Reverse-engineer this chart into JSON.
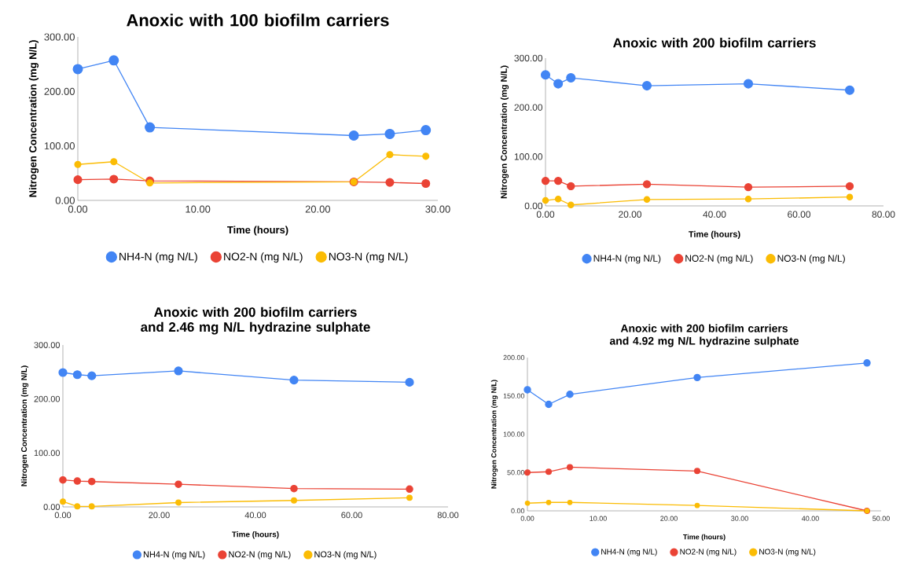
{
  "chart_data": [
    {
      "type": "line",
      "title": "Anoxic with 100 biofilm carriers",
      "xlabel": "Time (hours)",
      "ylabel": "Nitrogen Concentration (mg N/L)",
      "x": [
        0,
        3,
        6,
        23,
        26,
        29
      ],
      "series": [
        {
          "name": "NH4-N (mg N/L)",
          "color": "#4285f4",
          "values": [
            241,
            257,
            134,
            119,
            122,
            129
          ]
        },
        {
          "name": "NO2-N (mg N/L)",
          "color": "#ea4335",
          "values": [
            38,
            39,
            36,
            34,
            33,
            31
          ]
        },
        {
          "name": "NO3-N (mg N/L)",
          "color": "#fbbc04",
          "values": [
            66,
            71,
            32,
            34,
            84,
            81
          ]
        }
      ],
      "xlim": [
        0,
        30
      ],
      "ylim": [
        0,
        300
      ],
      "xticks": [
        {
          "value": 0,
          "label": "0.00"
        },
        {
          "value": 10,
          "label": "10.00"
        },
        {
          "value": 20,
          "label": "20.00"
        },
        {
          "value": 30,
          "label": "30.00"
        }
      ],
      "yticks": [
        {
          "value": 0,
          "label": "0.00"
        },
        {
          "value": 100,
          "label": "100.00"
        },
        {
          "value": 200,
          "label": "200.00"
        },
        {
          "value": 300,
          "label": "300.00"
        }
      ],
      "legend": "bottom",
      "marker": "circle"
    },
    {
      "type": "line",
      "title": "Anoxic with 200 biofilm carriers",
      "xlabel": "Time (hours)",
      "ylabel": "Nitrogen Concentration (mg N/L)",
      "x": [
        0,
        3,
        6,
        24,
        48,
        72
      ],
      "series": [
        {
          "name": "NH4-N (mg N/L)",
          "color": "#4285f4",
          "values": [
            266,
            248,
            260,
            244,
            248,
            235
          ]
        },
        {
          "name": "NO2-N (mg N/L)",
          "color": "#ea4335",
          "values": [
            51,
            51,
            40,
            44,
            38,
            40
          ]
        },
        {
          "name": "NO3-N (mg N/L)",
          "color": "#fbbc04",
          "values": [
            11,
            14,
            2,
            13,
            14,
            18
          ]
        }
      ],
      "xlim": [
        0,
        80
      ],
      "ylim": [
        0,
        300
      ],
      "xticks": [
        {
          "value": 0,
          "label": "0.00"
        },
        {
          "value": 20,
          "label": "20.00"
        },
        {
          "value": 40,
          "label": "40.00"
        },
        {
          "value": 60,
          "label": "60.00"
        },
        {
          "value": 80,
          "label": "80.00"
        }
      ],
      "yticks": [
        {
          "value": 0,
          "label": "0.00"
        },
        {
          "value": 100,
          "label": "100.00"
        },
        {
          "value": 200,
          "label": "200.00"
        },
        {
          "value": 300,
          "label": "300.00"
        }
      ],
      "legend": "bottom",
      "marker": "circle"
    },
    {
      "type": "line",
      "title": "Anoxic with 200 biofilm carriers and 2.46 mg N/L hydrazine sulphate",
      "xlabel": "Time (hours)",
      "ylabel": "Nitrogen Concentration (mg N/L)",
      "x": [
        0,
        3,
        6,
        24,
        48,
        72
      ],
      "series": [
        {
          "name": "NH4-N (mg N/L)",
          "color": "#4285f4",
          "values": [
            249,
            245,
            243,
            252,
            235,
            231
          ]
        },
        {
          "name": "NO2-N (mg N/L)",
          "color": "#ea4335",
          "values": [
            50,
            48,
            47,
            42,
            34,
            33
          ]
        },
        {
          "name": "NO3-N (mg N/L)",
          "color": "#fbbc04",
          "values": [
            10,
            1,
            1,
            8,
            12,
            17
          ]
        }
      ],
      "xlim": [
        0,
        80
      ],
      "ylim": [
        0,
        300
      ],
      "xticks": [
        {
          "value": 0,
          "label": "0.00"
        },
        {
          "value": 20,
          "label": "20.00"
        },
        {
          "value": 40,
          "label": "40.00"
        },
        {
          "value": 60,
          "label": "60.00"
        },
        {
          "value": 80,
          "label": "80.00"
        }
      ],
      "yticks": [
        {
          "value": 0,
          "label": "0.00"
        },
        {
          "value": 100,
          "label": "100.00"
        },
        {
          "value": 200,
          "label": "200.00"
        },
        {
          "value": 300,
          "label": "300.00"
        }
      ],
      "legend": "bottom",
      "marker": "circle"
    },
    {
      "type": "line",
      "title": "Anoxic with 200 biofilm carriers and 4.92 mg N/L hydrazine sulphate",
      "xlabel": "Time (hours)",
      "ylabel": "Nitrogen Concentration (mg N/L)",
      "x": [
        0,
        3,
        6,
        24,
        48
      ],
      "series": [
        {
          "name": "NH4-N (mg N/L)",
          "color": "#4285f4",
          "values": [
            158,
            139,
            152,
            174,
            193
          ]
        },
        {
          "name": "NO2-N (mg N/L)",
          "color": "#ea4335",
          "values": [
            50,
            51,
            57,
            52,
            0
          ]
        },
        {
          "name": "NO3-N (mg N/L)",
          "color": "#fbbc04",
          "values": [
            10,
            11,
            11,
            7,
            0
          ]
        }
      ],
      "xlim": [
        0,
        50
      ],
      "ylim": [
        0,
        200
      ],
      "xticks": [
        {
          "value": 0,
          "label": "0.00"
        },
        {
          "value": 10,
          "label": "10.00"
        },
        {
          "value": 20,
          "label": "20.00"
        },
        {
          "value": 30,
          "label": "30.00"
        },
        {
          "value": 40,
          "label": "40.00"
        },
        {
          "value": 50,
          "label": "50.00"
        }
      ],
      "yticks": [
        {
          "value": 0,
          "label": "0.00"
        },
        {
          "value": 50,
          "label": "50.00"
        },
        {
          "value": 100,
          "label": "100.00"
        },
        {
          "value": 150,
          "label": "150.00"
        },
        {
          "value": 200,
          "label": "200.00"
        }
      ],
      "legend": "bottom",
      "marker": "circle"
    }
  ]
}
